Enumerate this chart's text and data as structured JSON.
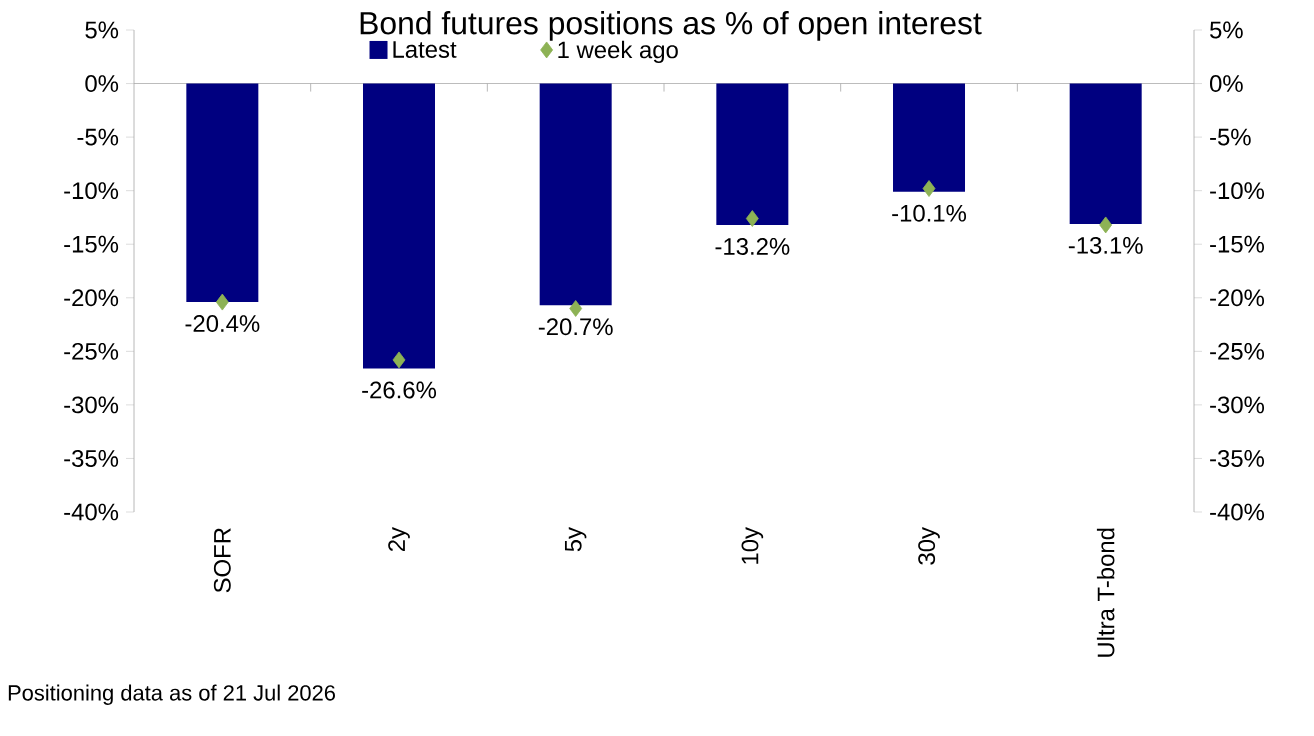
{
  "chart_data": {
    "type": "bar",
    "title": "Bond futures positions as % of open interest",
    "categories": [
      "SOFR",
      "2y",
      "5y",
      "10y",
      "30y",
      "Ultra T-bond"
    ],
    "series": [
      {
        "name": "Latest",
        "color": "#000080",
        "values": [
          -20.4,
          -26.6,
          -20.7,
          -13.2,
          -10.1,
          -13.1
        ],
        "value_labels": [
          "-20.4%",
          "-26.6%",
          "-20.7%",
          "-13.2%",
          "-10.1%",
          "-13.1%"
        ]
      },
      {
        "name": "1 week ago",
        "type": "scatter",
        "marker": "diamond",
        "color": "#8db255",
        "values": [
          -20.4,
          -25.8,
          -21.0,
          -12.6,
          -9.8,
          -13.2
        ]
      }
    ],
    "ylim": [
      -40,
      5
    ],
    "yticks": [
      {
        "value": 5,
        "label": "5%"
      },
      {
        "value": 0,
        "label": "0%"
      },
      {
        "value": -5,
        "label": "-5%"
      },
      {
        "value": -10,
        "label": "-10%"
      },
      {
        "value": -15,
        "label": "-15%"
      },
      {
        "value": -20,
        "label": "-20%"
      },
      {
        "value": -25,
        "label": "-25%"
      },
      {
        "value": -30,
        "label": "-30%"
      },
      {
        "value": -35,
        "label": "-35%"
      },
      {
        "value": -40,
        "label": "-40%"
      }
    ],
    "y2lim": [
      -40,
      5
    ],
    "y2ticks": [
      {
        "value": 5,
        "label": "5%"
      },
      {
        "value": 0,
        "label": "0%"
      },
      {
        "value": -5,
        "label": "-5%"
      },
      {
        "value": -10,
        "label": "-10%"
      },
      {
        "value": -15,
        "label": "-15%"
      },
      {
        "value": -20,
        "label": "-20%"
      },
      {
        "value": -25,
        "label": "-25%"
      },
      {
        "value": -30,
        "label": "-30%"
      },
      {
        "value": -35,
        "label": "-35%"
      },
      {
        "value": -40,
        "label": "-40%"
      }
    ],
    "legend": "top",
    "annotations": [
      "Positioning data as of 21 Jul 2026"
    ]
  }
}
